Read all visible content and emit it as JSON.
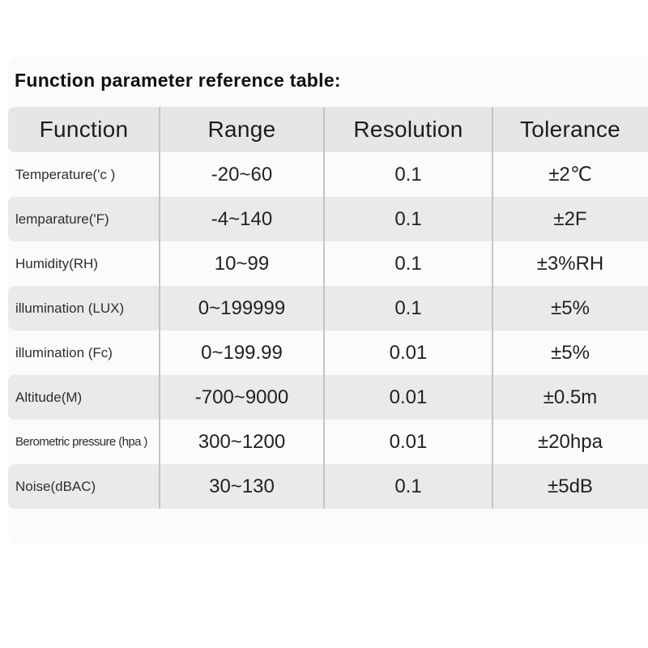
{
  "page": {
    "title": "Function parameter reference table:"
  },
  "table": {
    "columns": [
      "Function",
      "Range",
      "Resolution",
      "Tolerance"
    ],
    "rows": [
      {
        "function": "Temperature('c )",
        "range": "-20~60",
        "resolution": "0.1",
        "tolerance": "±2℃"
      },
      {
        "function": "lemparature('F)",
        "range": "-4~140",
        "resolution": "0.1",
        "tolerance": "±2F"
      },
      {
        "function": "Humidity(RH)",
        "range": "10~99",
        "resolution": "0.1",
        "tolerance": "±3%RH"
      },
      {
        "function": "illumination (LUX)",
        "range": "0~199999",
        "resolution": "0.1",
        "tolerance": "±5%"
      },
      {
        "function": "illumination (Fc)",
        "range": "0~199.99",
        "resolution": "0.01",
        "tolerance": "±5%"
      },
      {
        "function": "Altitude(M)",
        "range": "-700~9000",
        "resolution": "0.01",
        "tolerance": "±0.5m"
      },
      {
        "function": "Berometric pressure (hpa )",
        "range": "300~1200",
        "resolution": "0.01",
        "tolerance": "±20hpa"
      },
      {
        "function": "Noise(dBAC)",
        "range": "30~130",
        "resolution": "0.1",
        "tolerance": "±5dB"
      }
    ]
  },
  "colors": {
    "card_bg": "#fbfbfb",
    "header_bg": "#e6e6e6",
    "stripe_bg": "#eaeaea",
    "separator": "#c4c4c4",
    "title_color": "#111111"
  }
}
